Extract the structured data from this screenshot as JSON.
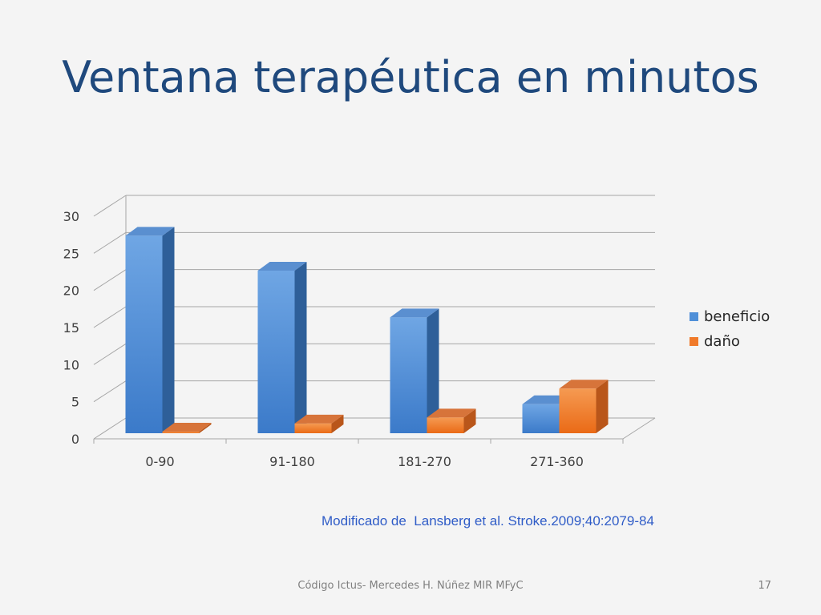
{
  "slide": {
    "title": "Ventana terapéutica en minutos",
    "citation": "Modificado de  Lansberg et al. Stroke.2009;40:2079-84",
    "footer": "Código Ictus- Mercedes H. Núñez MIR MFyC",
    "page_number": "17"
  },
  "colors": {
    "title": "#1f497d",
    "beneficio": "#4f8fd8",
    "dano": "#f07a2a",
    "citation": "#2f5cc7"
  },
  "chart_data": {
    "type": "bar",
    "categories": [
      "0-90",
      "91-180",
      "181-270",
      "271-360"
    ],
    "series": [
      {
        "name": "beneficio",
        "values": [
          27.8,
          23.1,
          16.8,
          5.1
        ]
      },
      {
        "name": "daño",
        "values": [
          1.4,
          2.5,
          3.3,
          7.2
        ]
      }
    ],
    "y_ticks": [
      "0",
      "5",
      "10",
      "15",
      "20",
      "25",
      "30"
    ],
    "ylim": [
      0,
      30
    ],
    "grid": true,
    "legend_position": "right",
    "style": "3d-clustered-column"
  }
}
